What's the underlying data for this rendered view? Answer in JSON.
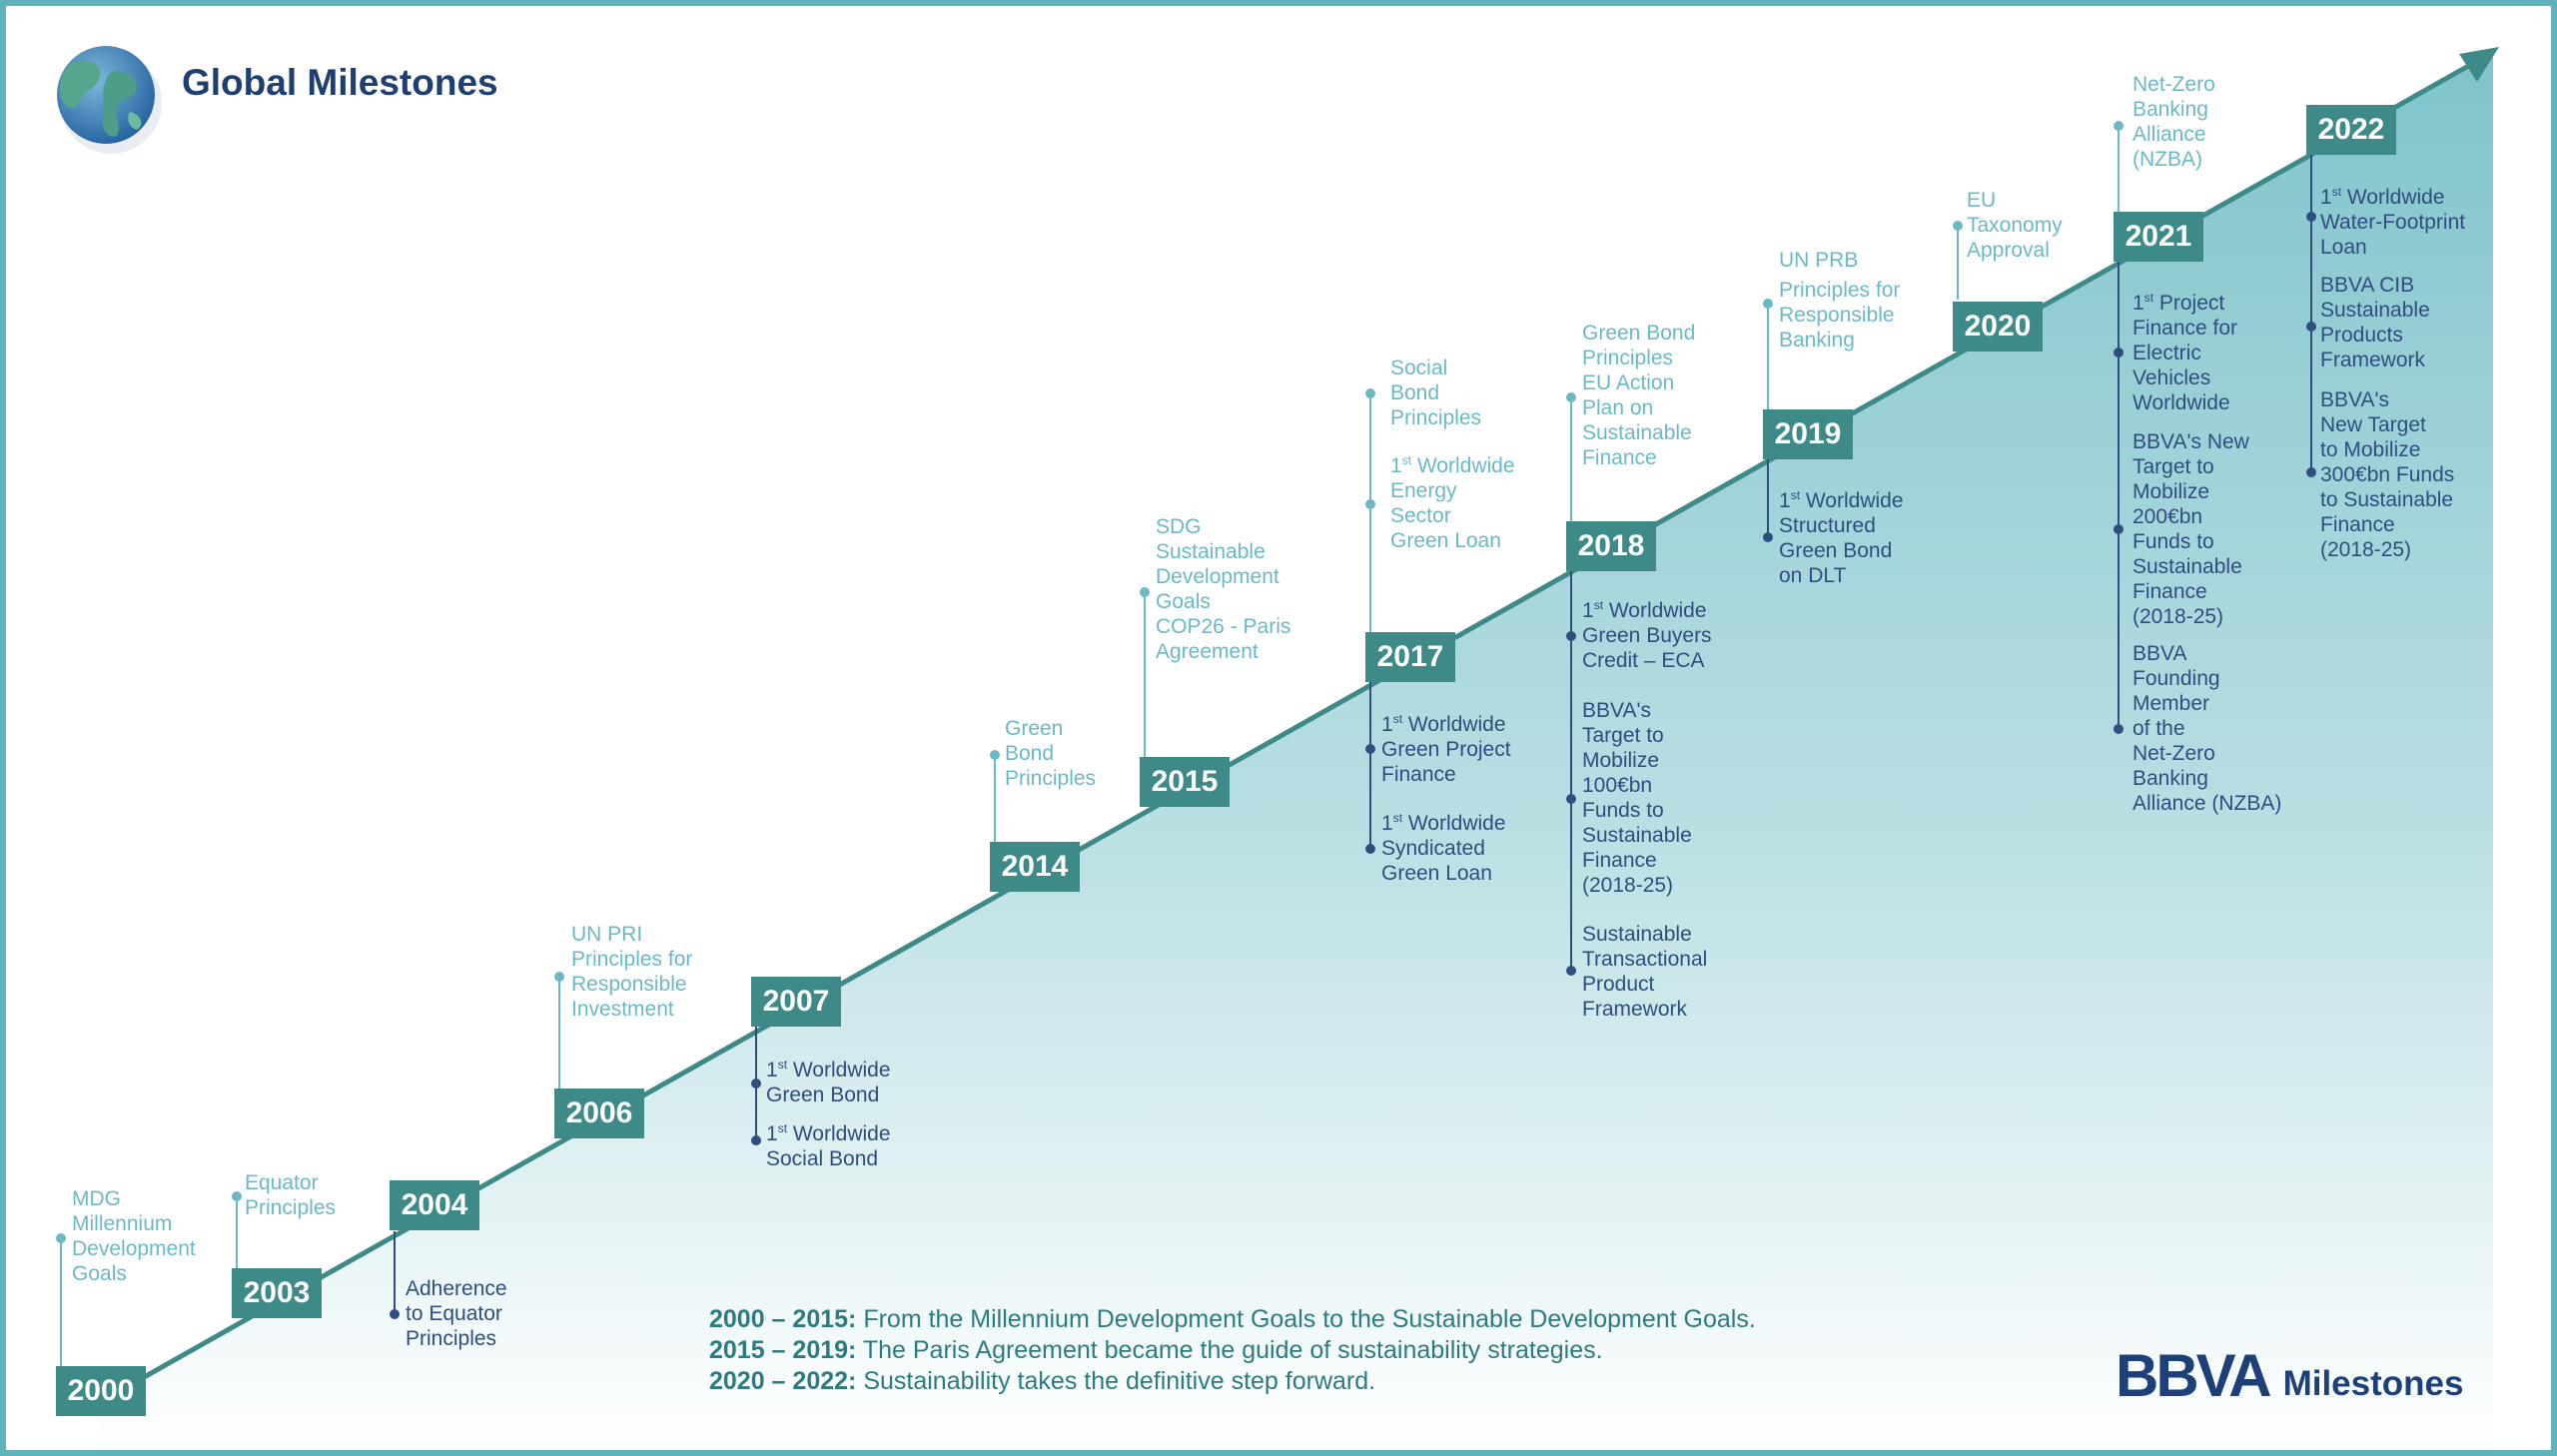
{
  "title": "Global Milestones",
  "colors": {
    "band": "#3d8a89",
    "global_text": "#6ab9c4",
    "bbva_text": "#2d4e7e",
    "frame": "#5fb3bd",
    "title": "#1f3f73"
  },
  "icons": {
    "globe": "globe-icon",
    "arrow": "arrow-head-icon"
  },
  "years": [
    "2000",
    "2003",
    "2004",
    "2006",
    "2007",
    "2014",
    "2015",
    "2017",
    "2018",
    "2019",
    "2020",
    "2021",
    "2022"
  ],
  "milestones": {
    "m2000": [
      "MDG",
      "Millennium",
      "Development",
      "Goals"
    ],
    "m2003": [
      "Equator",
      "Principles"
    ],
    "m2004": [
      "Adherence",
      "to Equator",
      "Principles"
    ],
    "m2006": [
      "UN PRI",
      "Principles for",
      "Responsible",
      "Investment"
    ],
    "m2007a": [
      "1st Worldwide",
      "Green Bond"
    ],
    "m2007b": [
      "1st Worldwide",
      "Social Bond"
    ],
    "m2014": [
      "Green",
      "Bond",
      "Principles"
    ],
    "m2015": [
      "SDG",
      "Sustainable",
      "Development",
      "Goals",
      "COP26 - Paris",
      "Agreement"
    ],
    "m2017a": [
      "Social",
      "Bond",
      "Principles"
    ],
    "m2017b": [
      "1st Worldwide",
      "Energy",
      "Sector",
      "Green Loan"
    ],
    "m2017c": [
      "1st Worldwide",
      "Green Project",
      "Finance"
    ],
    "m2017d": [
      "1st Worldwide",
      "Syndicated",
      "Green Loan"
    ],
    "m2018a": [
      "Green Bond",
      "Principles",
      "EU Action",
      "Plan on",
      "Sustainable",
      "Finance"
    ],
    "m2018b": [
      "1st Worldwide",
      "Green Buyers",
      "Credit – ECA"
    ],
    "m2018c": [
      "BBVA's",
      "Target to",
      "Mobilize",
      "100€bn",
      "Funds to",
      "Sustainable",
      "Finance",
      "(2018-25)"
    ],
    "m2018d": [
      "Sustainable",
      "Transactional",
      "Product",
      "Framework"
    ],
    "m2019a": [
      "UN PRB"
    ],
    "m2019b": [
      "Principles for",
      "Responsible",
      "Banking"
    ],
    "m2019c": [
      "1st Worldwide",
      "Structured",
      "Green Bond",
      "on DLT"
    ],
    "m2020": [
      "EU",
      "Taxonomy",
      "Approval"
    ],
    "m2021a": [
      "Net-Zero",
      "Banking",
      "Alliance",
      "(NZBA)"
    ],
    "m2021b": [
      "1st Project",
      "Finance for",
      "Electric",
      "Vehicles",
      "Worldwide"
    ],
    "m2021c": [
      "BBVA's New",
      "Target to",
      "Mobilize",
      "200€bn",
      "Funds to",
      "Sustainable",
      "Finance",
      "(2018-25)"
    ],
    "m2021d": [
      "BBVA",
      "Founding",
      "Member",
      "of the",
      "Net-Zero",
      "Banking",
      "Alliance (NZBA)"
    ],
    "m2022a": [
      "1st Worldwide",
      "Water-Footprint",
      "Loan"
    ],
    "m2022b": [
      "BBVA CIB",
      "Sustainable",
      "Products",
      "Framework"
    ],
    "m2022c": [
      "BBVA's",
      "New Target",
      "to Mobilize",
      "300€bn Funds",
      "to Sustainable",
      "Finance",
      "(2018-25)"
    ]
  },
  "periods": [
    {
      "range": "2000 – 2015:",
      "text": "From the Millennium Development Goals to the Sustainable Development Goals."
    },
    {
      "range": "2015 – 2019:",
      "text": "The Paris Agreement became the guide of sustainability strategies."
    },
    {
      "range": "2020 – 2022:",
      "text": "Sustainability takes the definitive step forward."
    }
  ],
  "brand": {
    "logo": "BBVA",
    "word": "Milestones"
  }
}
